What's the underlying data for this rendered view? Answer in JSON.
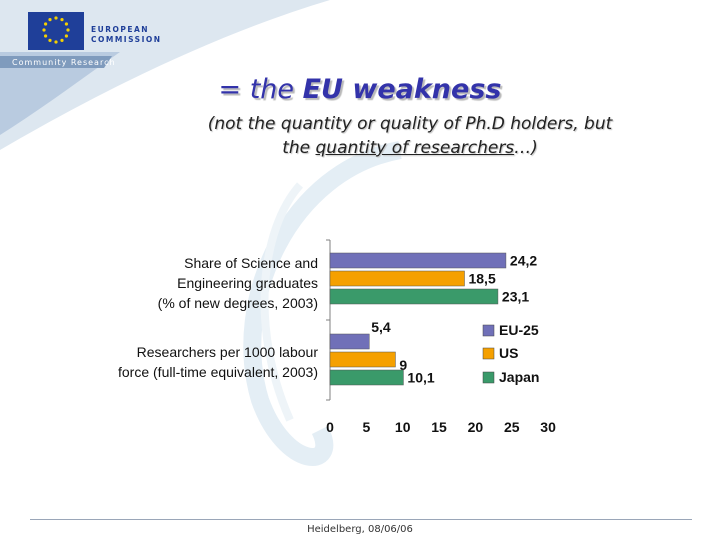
{
  "header": {
    "logo_line1": "EUROPEAN",
    "logo_line2": "COMMISSION",
    "banner": "Community Research"
  },
  "slide": {
    "title_eq": "= the ",
    "title_bold": "EU weakness",
    "subtitle_line1": "(not the quantity or quality of Ph.D holders, but",
    "subtitle_line2_pre": "the ",
    "subtitle_line2_ul": "quantity of researchers",
    "subtitle_line2_post": "…)"
  },
  "chart_data": {
    "type": "bar",
    "orientation": "horizontal",
    "categories": [
      [
        "Share of Science and",
        "Engineering graduates",
        "(% of new degrees, 2003)"
      ],
      [
        "Researchers per 1000 labour",
        "force (full-time equivalent, 2003)"
      ]
    ],
    "series": [
      {
        "name": "EU-25",
        "color": "#7070b8",
        "values": [
          24.2,
          5.4
        ],
        "labels": [
          "24,2",
          "5,4"
        ]
      },
      {
        "name": "US",
        "color": "#f5a000",
        "values": [
          18.5,
          9
        ],
        "labels": [
          "18,5",
          "9"
        ]
      },
      {
        "name": "Japan",
        "color": "#3a9a6a",
        "values": [
          23.1,
          10.1
        ],
        "labels": [
          "23,1",
          "10,1"
        ]
      }
    ],
    "xlim": [
      0,
      30
    ],
    "xticks": [
      "0",
      "5",
      "10",
      "15",
      "20",
      "25",
      "30"
    ],
    "legend": "right"
  },
  "footer": {
    "text": "Heidelberg, 08/06/06"
  }
}
